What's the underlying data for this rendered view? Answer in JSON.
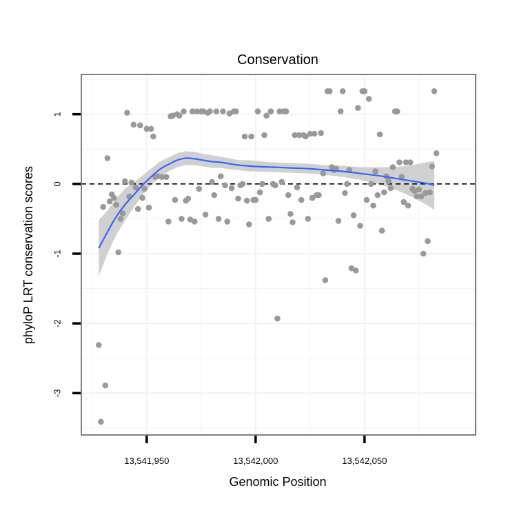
{
  "chart_data": {
    "type": "scatter",
    "title": "Conservation",
    "xlabel": "Genomic Position",
    "ylabel": "phyloP LRT conservation scores",
    "xlim": [
      13541920,
      13542101
    ],
    "ylim": [
      -3.6,
      1.57
    ],
    "x_ticks": [
      {
        "value": 13541950,
        "label": "13,541,950"
      },
      {
        "value": 13542000,
        "label": "13,542,000"
      },
      {
        "value": 13542050,
        "label": "13,542,050"
      }
    ],
    "y_ticks": [
      {
        "value": -3,
        "label": "-3"
      },
      {
        "value": -2,
        "label": "-2"
      },
      {
        "value": -1,
        "label": "-1"
      },
      {
        "value": 0,
        "label": "0"
      },
      {
        "value": 1,
        "label": "1"
      }
    ],
    "grid": true,
    "reference_line": {
      "y": 0,
      "style": "dashed",
      "color": "#000000"
    },
    "colors": {
      "points": "#999999",
      "smooth_line": "#3366ff",
      "ci_band": "#d0d0d0",
      "panel_border": "#7f7f7f",
      "grid": "#f2f2f2"
    },
    "points": [
      {
        "x": 13541928,
        "y": -2.31
      },
      {
        "x": 13541929,
        "y": -3.41
      },
      {
        "x": 13541930,
        "y": -0.33
      },
      {
        "x": 13541931,
        "y": -2.89
      },
      {
        "x": 13541932,
        "y": 0.37
      },
      {
        "x": 13541933,
        "y": -0.25
      },
      {
        "x": 13541934,
        "y": -0.15
      },
      {
        "x": 13541935,
        "y": -0.2
      },
      {
        "x": 13541936,
        "y": -0.3
      },
      {
        "x": 13541937,
        "y": -0.98
      },
      {
        "x": 13541938,
        "y": -0.5
      },
      {
        "x": 13541939,
        "y": -0.42
      },
      {
        "x": 13541940,
        "y": 0.04
      },
      {
        "x": 13541941,
        "y": 1.02
      },
      {
        "x": 13541942,
        "y": -0.18
      },
      {
        "x": 13541943,
        "y": 0.02
      },
      {
        "x": 13541944,
        "y": 0.85
      },
      {
        "x": 13541945,
        "y": -0.05
      },
      {
        "x": 13541946,
        "y": -0.36
      },
      {
        "x": 13541947,
        "y": 0.84
      },
      {
        "x": 13541948,
        "y": -0.2
      },
      {
        "x": 13541949,
        "y": -0.07
      },
      {
        "x": 13541950,
        "y": 0.79
      },
      {
        "x": 13541951,
        "y": -0.34
      },
      {
        "x": 13541952,
        "y": 0.79
      },
      {
        "x": 13541953,
        "y": 0.68
      },
      {
        "x": 13541954,
        "y": 0.1
      },
      {
        "x": 13541955,
        "y": 0.11
      },
      {
        "x": 13541957,
        "y": 0.1
      },
      {
        "x": 13541959,
        "y": 0.1
      },
      {
        "x": 13541960,
        "y": -0.54
      },
      {
        "x": 13541961,
        "y": 0.97
      },
      {
        "x": 13541962,
        "y": 0.98
      },
      {
        "x": 13541963,
        "y": -0.23
      },
      {
        "x": 13541964,
        "y": 1.0
      },
      {
        "x": 13541965,
        "y": 0.98
      },
      {
        "x": 13541966,
        "y": -0.5
      },
      {
        "x": 13541967,
        "y": 1.04
      },
      {
        "x": 13541968,
        "y": -0.24
      },
      {
        "x": 13541969,
        "y": -0.21
      },
      {
        "x": 13541970,
        "y": -0.51
      },
      {
        "x": 13541971,
        "y": 1.04
      },
      {
        "x": 13541972,
        "y": -0.54
      },
      {
        "x": 13541973,
        "y": 1.04
      },
      {
        "x": 13541974,
        "y": -0.07
      },
      {
        "x": 13541975,
        "y": 1.04
      },
      {
        "x": 13541976,
        "y": 1.04
      },
      {
        "x": 13541977,
        "y": -0.44
      },
      {
        "x": 13541978,
        "y": 1.02
      },
      {
        "x": 13541979,
        "y": 1.04
      },
      {
        "x": 13541980,
        "y": 0.03
      },
      {
        "x": 13541981,
        "y": -0.16
      },
      {
        "x": 13541982,
        "y": 1.04
      },
      {
        "x": 13541983,
        "y": -0.5
      },
      {
        "x": 13541984,
        "y": 0.11
      },
      {
        "x": 13541985,
        "y": 1.04
      },
      {
        "x": 13541986,
        "y": -0.02
      },
      {
        "x": 13541987,
        "y": -0.54
      },
      {
        "x": 13541988,
        "y": 1.01
      },
      {
        "x": 13541989,
        "y": -0.06
      },
      {
        "x": 13541990,
        "y": 1.04
      },
      {
        "x": 13541991,
        "y": 1.04
      },
      {
        "x": 13541992,
        "y": -0.21
      },
      {
        "x": 13541993,
        "y": -0.02
      },
      {
        "x": 13541994,
        "y": 0.0
      },
      {
        "x": 13541995,
        "y": 0.68
      },
      {
        "x": 13541996,
        "y": -0.24
      },
      {
        "x": 13541997,
        "y": -0.58
      },
      {
        "x": 13541998,
        "y": 0.68
      },
      {
        "x": 13541999,
        "y": -0.23
      },
      {
        "x": 13542000,
        "y": -0.23
      },
      {
        "x": 13542001,
        "y": 1.04
      },
      {
        "x": 13542002,
        "y": -0.12
      },
      {
        "x": 13542003,
        "y": 0.0
      },
      {
        "x": 13542004,
        "y": 0.7
      },
      {
        "x": 13542005,
        "y": 0.98
      },
      {
        "x": 13542006,
        "y": -0.5
      },
      {
        "x": 13542007,
        "y": 1.04
      },
      {
        "x": 13542008,
        "y": 0.0
      },
      {
        "x": 13542009,
        "y": -0.02
      },
      {
        "x": 13542010,
        "y": -1.93
      },
      {
        "x": 13542011,
        "y": 1.04
      },
      {
        "x": 13542012,
        "y": 0.03
      },
      {
        "x": 13542013,
        "y": 1.04
      },
      {
        "x": 13542014,
        "y": 1.04
      },
      {
        "x": 13542015,
        "y": -0.16
      },
      {
        "x": 13542016,
        "y": -0.43
      },
      {
        "x": 13542017,
        "y": -0.55
      },
      {
        "x": 13542018,
        "y": 0.7
      },
      {
        "x": 13542019,
        "y": -0.05
      },
      {
        "x": 13542020,
        "y": 0.7
      },
      {
        "x": 13542021,
        "y": -0.23
      },
      {
        "x": 13542022,
        "y": 0.7
      },
      {
        "x": 13542023,
        "y": 0.68
      },
      {
        "x": 13542024,
        "y": -0.5
      },
      {
        "x": 13542025,
        "y": 0.72
      },
      {
        "x": 13542026,
        "y": -0.2
      },
      {
        "x": 13542027,
        "y": 0.72
      },
      {
        "x": 13542028,
        "y": -0.16
      },
      {
        "x": 13542029,
        "y": -0.16
      },
      {
        "x": 13542030,
        "y": 0.73
      },
      {
        "x": 13542031,
        "y": 0.15
      },
      {
        "x": 13542032,
        "y": -1.38
      },
      {
        "x": 13542033,
        "y": 1.33
      },
      {
        "x": 13542034,
        "y": 1.33
      },
      {
        "x": 13542035,
        "y": 0.24
      },
      {
        "x": 13542036,
        "y": 0.2
      },
      {
        "x": 13542037,
        "y": 0.22
      },
      {
        "x": 13542038,
        "y": -0.53
      },
      {
        "x": 13542039,
        "y": 1.04
      },
      {
        "x": 13542040,
        "y": 1.33
      },
      {
        "x": 13542041,
        "y": -0.13
      },
      {
        "x": 13542042,
        "y": 0.0
      },
      {
        "x": 13542043,
        "y": 0.2
      },
      {
        "x": 13542044,
        "y": -1.21
      },
      {
        "x": 13542045,
        "y": -0.45
      },
      {
        "x": 13542046,
        "y": -1.24
      },
      {
        "x": 13542047,
        "y": 1.09
      },
      {
        "x": 13542048,
        "y": -0.6
      },
      {
        "x": 13542049,
        "y": 1.33
      },
      {
        "x": 13542050,
        "y": 1.33
      },
      {
        "x": 13542051,
        "y": -0.23
      },
      {
        "x": 13542052,
        "y": 1.22
      },
      {
        "x": 13542053,
        "y": 0.0
      },
      {
        "x": 13542054,
        "y": -0.31
      },
      {
        "x": 13542055,
        "y": 0.18
      },
      {
        "x": 13542056,
        "y": -0.16
      },
      {
        "x": 13542057,
        "y": 0.71
      },
      {
        "x": 13542058,
        "y": -0.67
      },
      {
        "x": 13542059,
        "y": -0.12
      },
      {
        "x": 13542060,
        "y": 0.11
      },
      {
        "x": 13542061,
        "y": 0.04
      },
      {
        "x": 13542062,
        "y": -0.06
      },
      {
        "x": 13542063,
        "y": 0.24
      },
      {
        "x": 13542064,
        "y": 1.04
      },
      {
        "x": 13542065,
        "y": 1.04
      },
      {
        "x": 13542066,
        "y": 0.31
      },
      {
        "x": 13542067,
        "y": 0.1
      },
      {
        "x": 13542068,
        "y": -0.26
      },
      {
        "x": 13542069,
        "y": 0.31
      },
      {
        "x": 13542070,
        "y": -0.31
      },
      {
        "x": 13542071,
        "y": 0.31
      },
      {
        "x": 13542072,
        "y": -0.07
      },
      {
        "x": 13542073,
        "y": -0.1
      },
      {
        "x": 13542074,
        "y": -0.18
      },
      {
        "x": 13542075,
        "y": -0.08
      },
      {
        "x": 13542076,
        "y": -0.18
      },
      {
        "x": 13542077,
        "y": -1.0
      },
      {
        "x": 13542078,
        "y": -0.13
      },
      {
        "x": 13542079,
        "y": -0.82
      },
      {
        "x": 13542080,
        "y": -0.12
      },
      {
        "x": 13542081,
        "y": 0.25
      },
      {
        "x": 13542082,
        "y": 1.33
      },
      {
        "x": 13542083,
        "y": 0.44
      }
    ],
    "smooth": {
      "x": [
        13541928,
        13541932,
        13541936,
        13541940,
        13541944,
        13541948,
        13541952,
        13541956,
        13541960,
        13541964,
        13541968,
        13541972,
        13541976,
        13541980,
        13541984,
        13541988,
        13541992,
        13541996,
        13542000,
        13542008,
        13542016,
        13542024,
        13542032,
        13542040,
        13542048,
        13542056,
        13542064,
        13542072,
        13542078,
        13542082
      ],
      "y": [
        -0.92,
        -0.69,
        -0.47,
        -0.3,
        -0.16,
        -0.02,
        0.1,
        0.21,
        0.28,
        0.34,
        0.37,
        0.36,
        0.34,
        0.32,
        0.31,
        0.29,
        0.27,
        0.26,
        0.25,
        0.24,
        0.23,
        0.22,
        0.2,
        0.18,
        0.15,
        0.12,
        0.08,
        0.04,
        0.01,
        -0.02
      ],
      "lower": [
        -1.32,
        -1.0,
        -0.73,
        -0.53,
        -0.34,
        -0.16,
        -0.02,
        0.1,
        0.18,
        0.24,
        0.27,
        0.27,
        0.25,
        0.23,
        0.23,
        0.21,
        0.2,
        0.18,
        0.18,
        0.17,
        0.16,
        0.15,
        0.13,
        0.1,
        0.06,
        0.0,
        -0.08,
        -0.19,
        -0.29,
        -0.37
      ],
      "upper": [
        -0.52,
        -0.38,
        -0.21,
        -0.07,
        0.02,
        0.12,
        0.22,
        0.32,
        0.38,
        0.44,
        0.47,
        0.46,
        0.43,
        0.41,
        0.39,
        0.37,
        0.34,
        0.34,
        0.33,
        0.31,
        0.3,
        0.29,
        0.27,
        0.26,
        0.24,
        0.24,
        0.24,
        0.27,
        0.31,
        0.33
      ]
    }
  }
}
